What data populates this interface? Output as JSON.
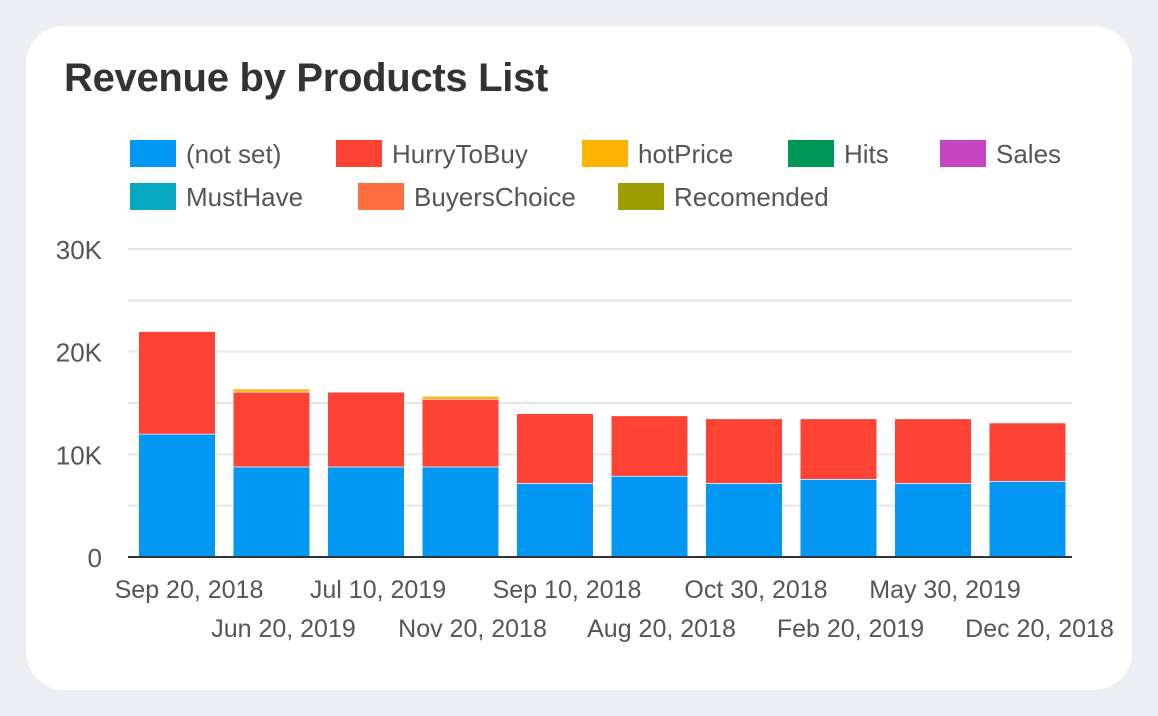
{
  "chart_data": {
    "type": "bar",
    "stacked": true,
    "title": "Revenue by Products List",
    "categories": [
      "Sep 20, 2018",
      "Jun 20, 2019",
      "Jul 10, 2019",
      "Nov 20, 2018",
      "Sep 10, 2018",
      "Aug 20, 2018",
      "Oct 30, 2018",
      "Feb 20, 2019",
      "May 30, 2019",
      "Dec 20, 2018"
    ],
    "series": [
      {
        "name": "(not set)",
        "color": "#0397f4",
        "values": [
          12000,
          8800,
          8800,
          8800,
          7200,
          7900,
          7200,
          7600,
          7200,
          7400
        ]
      },
      {
        "name": "HurryToBuy",
        "color": "#fe4234",
        "values": [
          10000,
          7300,
          7300,
          6600,
          6800,
          5900,
          6300,
          5900,
          6300,
          5700
        ]
      },
      {
        "name": "hotPrice",
        "color": "#fdb302",
        "values": [
          0,
          300,
          0,
          300,
          0,
          0,
          0,
          0,
          0,
          0
        ]
      },
      {
        "name": "Hits",
        "color": "#009858",
        "values": [
          0,
          0,
          0,
          0,
          0,
          0,
          0,
          0,
          0,
          0
        ]
      },
      {
        "name": "Sales",
        "color": "#c545c3",
        "values": [
          0,
          0,
          0,
          0,
          0,
          0,
          0,
          0,
          0,
          0
        ]
      },
      {
        "name": "MustHave",
        "color": "#06a9c1",
        "values": [
          0,
          0,
          0,
          0,
          0,
          0,
          0,
          0,
          0,
          0
        ]
      },
      {
        "name": "BuyersChoice",
        "color": "#fe6e40",
        "values": [
          0,
          0,
          0,
          0,
          0,
          0,
          0,
          0,
          0,
          0
        ]
      },
      {
        "name": "Recomended",
        "color": "#9e9d00",
        "values": [
          0,
          0,
          0,
          0,
          0,
          0,
          0,
          0,
          0,
          0
        ]
      }
    ],
    "ylim": [
      0,
      30000
    ],
    "yticks": [
      0,
      10000,
      20000,
      30000
    ],
    "ytick_labels": [
      "0",
      "10K",
      "20K",
      "30K"
    ],
    "grid": true,
    "legend_placement": "top"
  }
}
